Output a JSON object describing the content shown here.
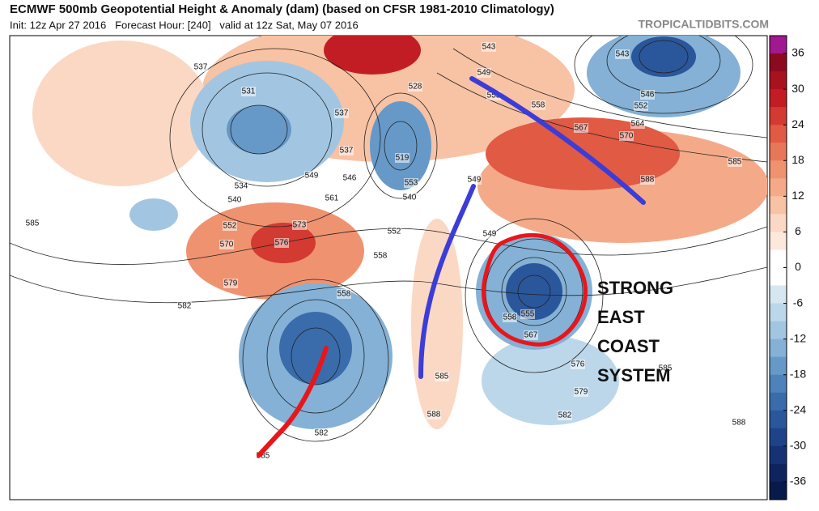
{
  "header": {
    "title": "ECMWF 500mb Geopotential Height & Anomaly (dam) (based on CFSR 1981-2010 Climatology)",
    "subtitle": "Init: 12z Apr 27 2016   Forecast Hour: [240]   valid at 12z Sat, May 07 2016",
    "site": "TROPICALTIDBITS.COM"
  },
  "annotation": [
    "STRONG",
    "EAST",
    "COAST",
    "SYSTEM"
  ],
  "contour_labels": [
    "585",
    "537",
    "531",
    "537",
    "537",
    "534",
    "540",
    "552",
    "570",
    "576",
    "573",
    "579",
    "582",
    "558",
    "558",
    "549",
    "561",
    "546",
    "543",
    "549",
    "555",
    "558",
    "567",
    "570",
    "564",
    "552",
    "546",
    "543",
    "585",
    "588",
    "549",
    "558",
    "555",
    "567",
    "576",
    "579",
    "582",
    "585",
    "588",
    "582",
    "588",
    "585",
    "585",
    "528",
    "519",
    "553",
    "540",
    "552",
    "549"
  ],
  "colorbar": {
    "lim": [
      -39,
      39
    ],
    "ticks": [
      36,
      30,
      24,
      18,
      12,
      6,
      0,
      -6,
      -12,
      -18,
      -24,
      -30,
      -36
    ],
    "colors": [
      "#a0198f",
      "#8c0a1e",
      "#a8121f",
      "#c21d25",
      "#d33a31",
      "#e05a44",
      "#e8775a",
      "#ef9270",
      "#f4aa88",
      "#f8c2a4",
      "#fbd8c3",
      "#fde9dc",
      "#ffffff",
      "#ffffff",
      "#d6e7f2",
      "#bcd7ea",
      "#a2c6e1",
      "#84b1d5",
      "#6699c8",
      "#4e82ba",
      "#3a6cab",
      "#2a569b",
      "#1e4389",
      "#153274",
      "#0d245e",
      "#081a4a"
    ]
  }
}
